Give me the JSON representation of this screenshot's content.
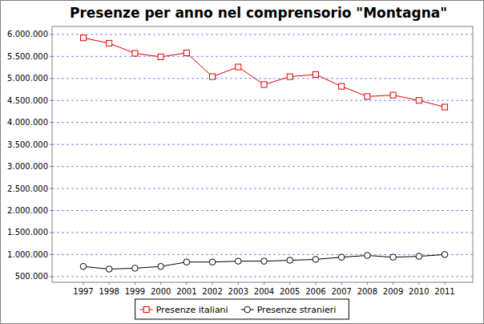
{
  "chart_data": {
    "type": "line",
    "title": "Presenze per anno nel comprensorio \"Montagna\"",
    "categories": [
      "1997",
      "1998",
      "1999",
      "2000",
      "2001",
      "2002",
      "2003",
      "2004",
      "2005",
      "2006",
      "2007",
      "2008",
      "2009",
      "2010",
      "2011"
    ],
    "series": [
      {
        "name": "Presenze italiani",
        "color": "#dd0000",
        "marker": "square",
        "values": [
          5920000,
          5800000,
          5570000,
          5490000,
          5580000,
          5040000,
          5260000,
          4860000,
          5040000,
          5090000,
          4820000,
          4590000,
          4620000,
          4500000,
          4350000
        ]
      },
      {
        "name": "Presenze stranieri",
        "color": "#000000",
        "marker": "circle",
        "values": [
          730000,
          670000,
          690000,
          730000,
          830000,
          830000,
          850000,
          850000,
          870000,
          890000,
          940000,
          980000,
          940000,
          960000,
          1000000
        ]
      }
    ],
    "ylim": [
      370000,
      6180000
    ],
    "yticks": [
      {
        "value": 500000,
        "label": "500.000"
      },
      {
        "value": 1000000,
        "label": "1.000.000"
      },
      {
        "value": 1500000,
        "label": "1.500.000"
      },
      {
        "value": 2000000,
        "label": "2.000.000"
      },
      {
        "value": 2500000,
        "label": "2.500.000"
      },
      {
        "value": 3000000,
        "label": "3.000.000"
      },
      {
        "value": 3500000,
        "label": "3.500.000"
      },
      {
        "value": 4000000,
        "label": "4.000.000"
      },
      {
        "value": 4500000,
        "label": "4.500.000"
      },
      {
        "value": 5000000,
        "label": "5.000.000"
      },
      {
        "value": 5500000,
        "label": "5.500.000"
      },
      {
        "value": 6000000,
        "label": "6.000.000"
      }
    ],
    "grid": true,
    "legend": "bottom"
  }
}
